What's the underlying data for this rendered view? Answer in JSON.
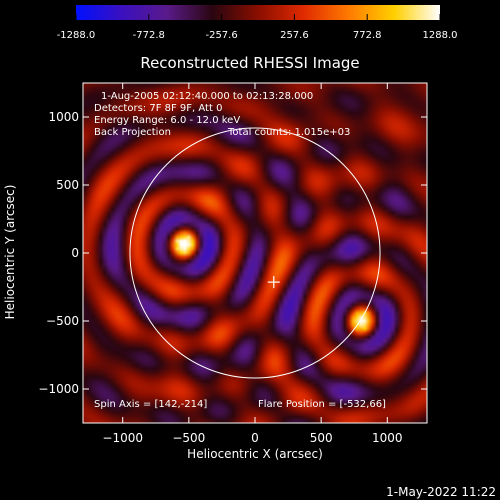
{
  "colorbar": {
    "ticks": [
      "-1288.0",
      "-772.8",
      "-257.6",
      "257.6",
      "772.8",
      "1288.0"
    ],
    "colors": [
      "#0010ff",
      "#3a10c0",
      "#5a1a8a",
      "#2a0610",
      "#8a0e00",
      "#e02a00",
      "#ff7a00",
      "#ffd000",
      "#ffffff"
    ]
  },
  "chart_data": {
    "type": "heatmap",
    "title": "Reconstructed RHESSI Image",
    "xlabel": "Heliocentric X (arcsec)",
    "ylabel": "Heliocentric Y (arcsec)",
    "xlim": [
      -1300,
      1300
    ],
    "ylim": [
      -1250,
      1250
    ],
    "xticks": [
      -1000,
      -500,
      0,
      500,
      1000
    ],
    "yticks": [
      -1000,
      -500,
      0,
      500,
      1000
    ],
    "xtick_labels": [
      "−1000",
      "−500",
      "0",
      "500",
      "1000"
    ],
    "ytick_labels": [
      "−1000",
      "−500",
      "0",
      "500",
      "1000"
    ],
    "value_range": [
      -1288.0,
      1288.0
    ],
    "solar_limb_radius_arcsec": 945,
    "sources": [
      {
        "x": -532,
        "y": 66,
        "peak": 1288
      },
      {
        "x": 810,
        "y": -500,
        "peak": 1150
      }
    ],
    "spin_axis_marker": {
      "x": 142,
      "y": -214
    }
  },
  "annotations": {
    "time_range": "1-Aug-2005 02:12:40.000 to 02:13:28.000",
    "detectors": "Detectors: 7F 8F 9F, Att 0",
    "energy_range": "Energy Range: 6.0 - 12.0 keV",
    "method": "Back Projection",
    "total_counts": "Total counts: 1.015e+03",
    "spin_axis": "Spin Axis = [142,-214]",
    "flare_position": "Flare Position = [-532,66]"
  },
  "timestamp": "1-May-2022 11:22"
}
